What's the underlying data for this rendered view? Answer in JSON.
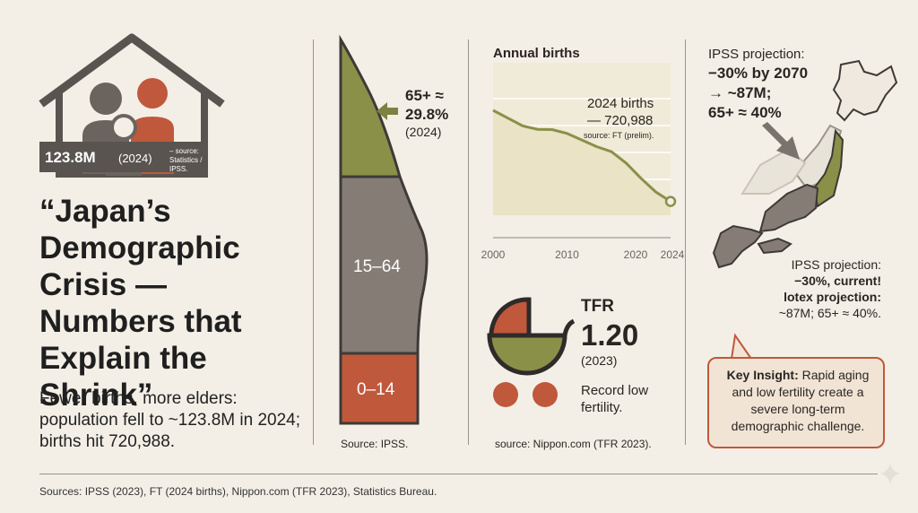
{
  "title": "“Japan’s Demographic Crisis — Numbers that Explain the Shrink”",
  "subtitle": "Fewer births, more elders: population fell to ~123.8M in 2024; births hit 720,988.",
  "house": {
    "population": "123.8M",
    "year": "(2024)",
    "source_line1": "– source:",
    "source_line2": "Statistics / IPSS."
  },
  "age_pyramid": {
    "elderly_label": "65+ ≈",
    "elderly_share": "29.8%",
    "elderly_year": "(2024)",
    "working_label": "15–64",
    "youth_label": "0–14",
    "source": "Source: IPSS."
  },
  "births_chart": {
    "title": "Annual births",
    "note_line1": "2024 births",
    "note_line2": "— 720,988",
    "note_source": "source: FT (prelim)."
  },
  "chart_data": {
    "type": "line",
    "title": "Annual births",
    "x": [
      2000,
      2002,
      2004,
      2006,
      2008,
      2010,
      2012,
      2014,
      2016,
      2018,
      2020,
      2022,
      2024
    ],
    "values": [
      1190000,
      1150000,
      1110000,
      1092000,
      1091000,
      1071000,
      1037000,
      1003000,
      977000,
      918000,
      840000,
      770000,
      720988
    ],
    "xticks": [
      "2000",
      "2010",
      "2020",
      "2024"
    ],
    "ylim": [
      650000,
      1250000
    ],
    "xlabel": "",
    "ylabel": ""
  },
  "tfr": {
    "label": "TFR",
    "value": "1.20",
    "year": "(2023)",
    "note": "Record low fertility.",
    "source": "source: Nippon.com (TFR 2023)."
  },
  "projection": {
    "top_line1": "IPSS projection:",
    "top_line2": "−30% by 2070",
    "top_line3": "→ ~87M;",
    "top_line4": "65+ ≈ 40%",
    "bottom_line1": "IPSS projection:",
    "bottom_line2": "−30%, current!",
    "bottom_line3": "lotex projection:",
    "bottom_line4": "~87M; 65+ ≈ 40%."
  },
  "insight": {
    "bold": "Key Insight:",
    "text": " Rapid aging and low fertility create a severe long-term demographic challenge."
  },
  "footer": "Sources: IPSS (2023), FT (2024 births), Nippon.com (TFR 2023), Statistics Bureau.",
  "colors": {
    "olive": "#8a9048",
    "terracotta": "#c0583c",
    "gray": "#857c75",
    "dark": "#5a5450",
    "background": "#f3efe6"
  }
}
